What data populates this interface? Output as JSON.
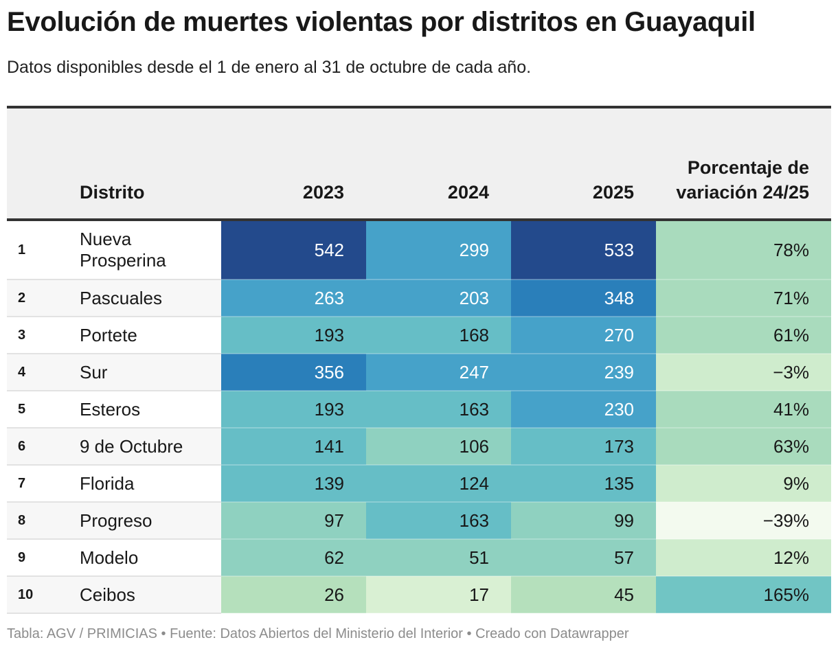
{
  "title": "Evolución de muertes violentas por distritos en Guayaquil",
  "subtitle": "Datos disponibles desde el 1 de enero al 31 de octubre de cada año.",
  "footer": "Tabla: AGV / PRIMICIAS • Fuente: Datos Abiertos del Ministerio del Interior • Creado con Datawrapper",
  "colors": {
    "dark_text": "#181818",
    "light_text": "#ffffff",
    "header_bg": "#f0f0f0",
    "count_scale": [
      "#d9f0d3",
      "#b5e0bc",
      "#8fd1c0",
      "#66bec6",
      "#46a2c9",
      "#2a7fba",
      "#234a8c"
    ],
    "variation_scale": [
      "#f3faef",
      "#cfeccd",
      "#a9dbbd",
      "#71c5c4"
    ]
  },
  "chart_data": {
    "type": "table",
    "title": "Evolución de muertes violentas por distritos en Guayaquil",
    "columns": [
      "",
      "Distrito",
      "2023",
      "2024",
      "2025",
      "Porcentaje de variación 24/25"
    ],
    "rows": [
      {
        "rank": "1",
        "distrito": "Nueva Prosperina",
        "v2023": 542,
        "v2024": 299,
        "v2025": 533,
        "variacion": 78
      },
      {
        "rank": "2",
        "distrito": "Pascuales",
        "v2023": 263,
        "v2024": 203,
        "v2025": 348,
        "variacion": 71
      },
      {
        "rank": "3",
        "distrito": "Portete",
        "v2023": 193,
        "v2024": 168,
        "v2025": 270,
        "variacion": 61
      },
      {
        "rank": "4",
        "distrito": "Sur",
        "v2023": 356,
        "v2024": 247,
        "v2025": 239,
        "variacion": -3
      },
      {
        "rank": "5",
        "distrito": "Esteros",
        "v2023": 193,
        "v2024": 163,
        "v2025": 230,
        "variacion": 41
      },
      {
        "rank": "6",
        "distrito": "9 de Octubre",
        "v2023": 141,
        "v2024": 106,
        "v2025": 173,
        "variacion": 63
      },
      {
        "rank": "7",
        "distrito": "Florida",
        "v2023": 139,
        "v2024": 124,
        "v2025": 135,
        "variacion": 9
      },
      {
        "rank": "8",
        "distrito": "Progreso",
        "v2023": 97,
        "v2024": 163,
        "v2025": 99,
        "variacion": -39
      },
      {
        "rank": "9",
        "distrito": "Modelo",
        "v2023": 62,
        "v2024": 51,
        "v2025": 57,
        "variacion": 12
      },
      {
        "rank": "10",
        "distrito": "Ceibos",
        "v2023": 26,
        "v2024": 17,
        "v2025": 45,
        "variacion": 165
      }
    ],
    "count_range": [
      17,
      542
    ],
    "variation_range": [
      -39,
      165
    ]
  }
}
